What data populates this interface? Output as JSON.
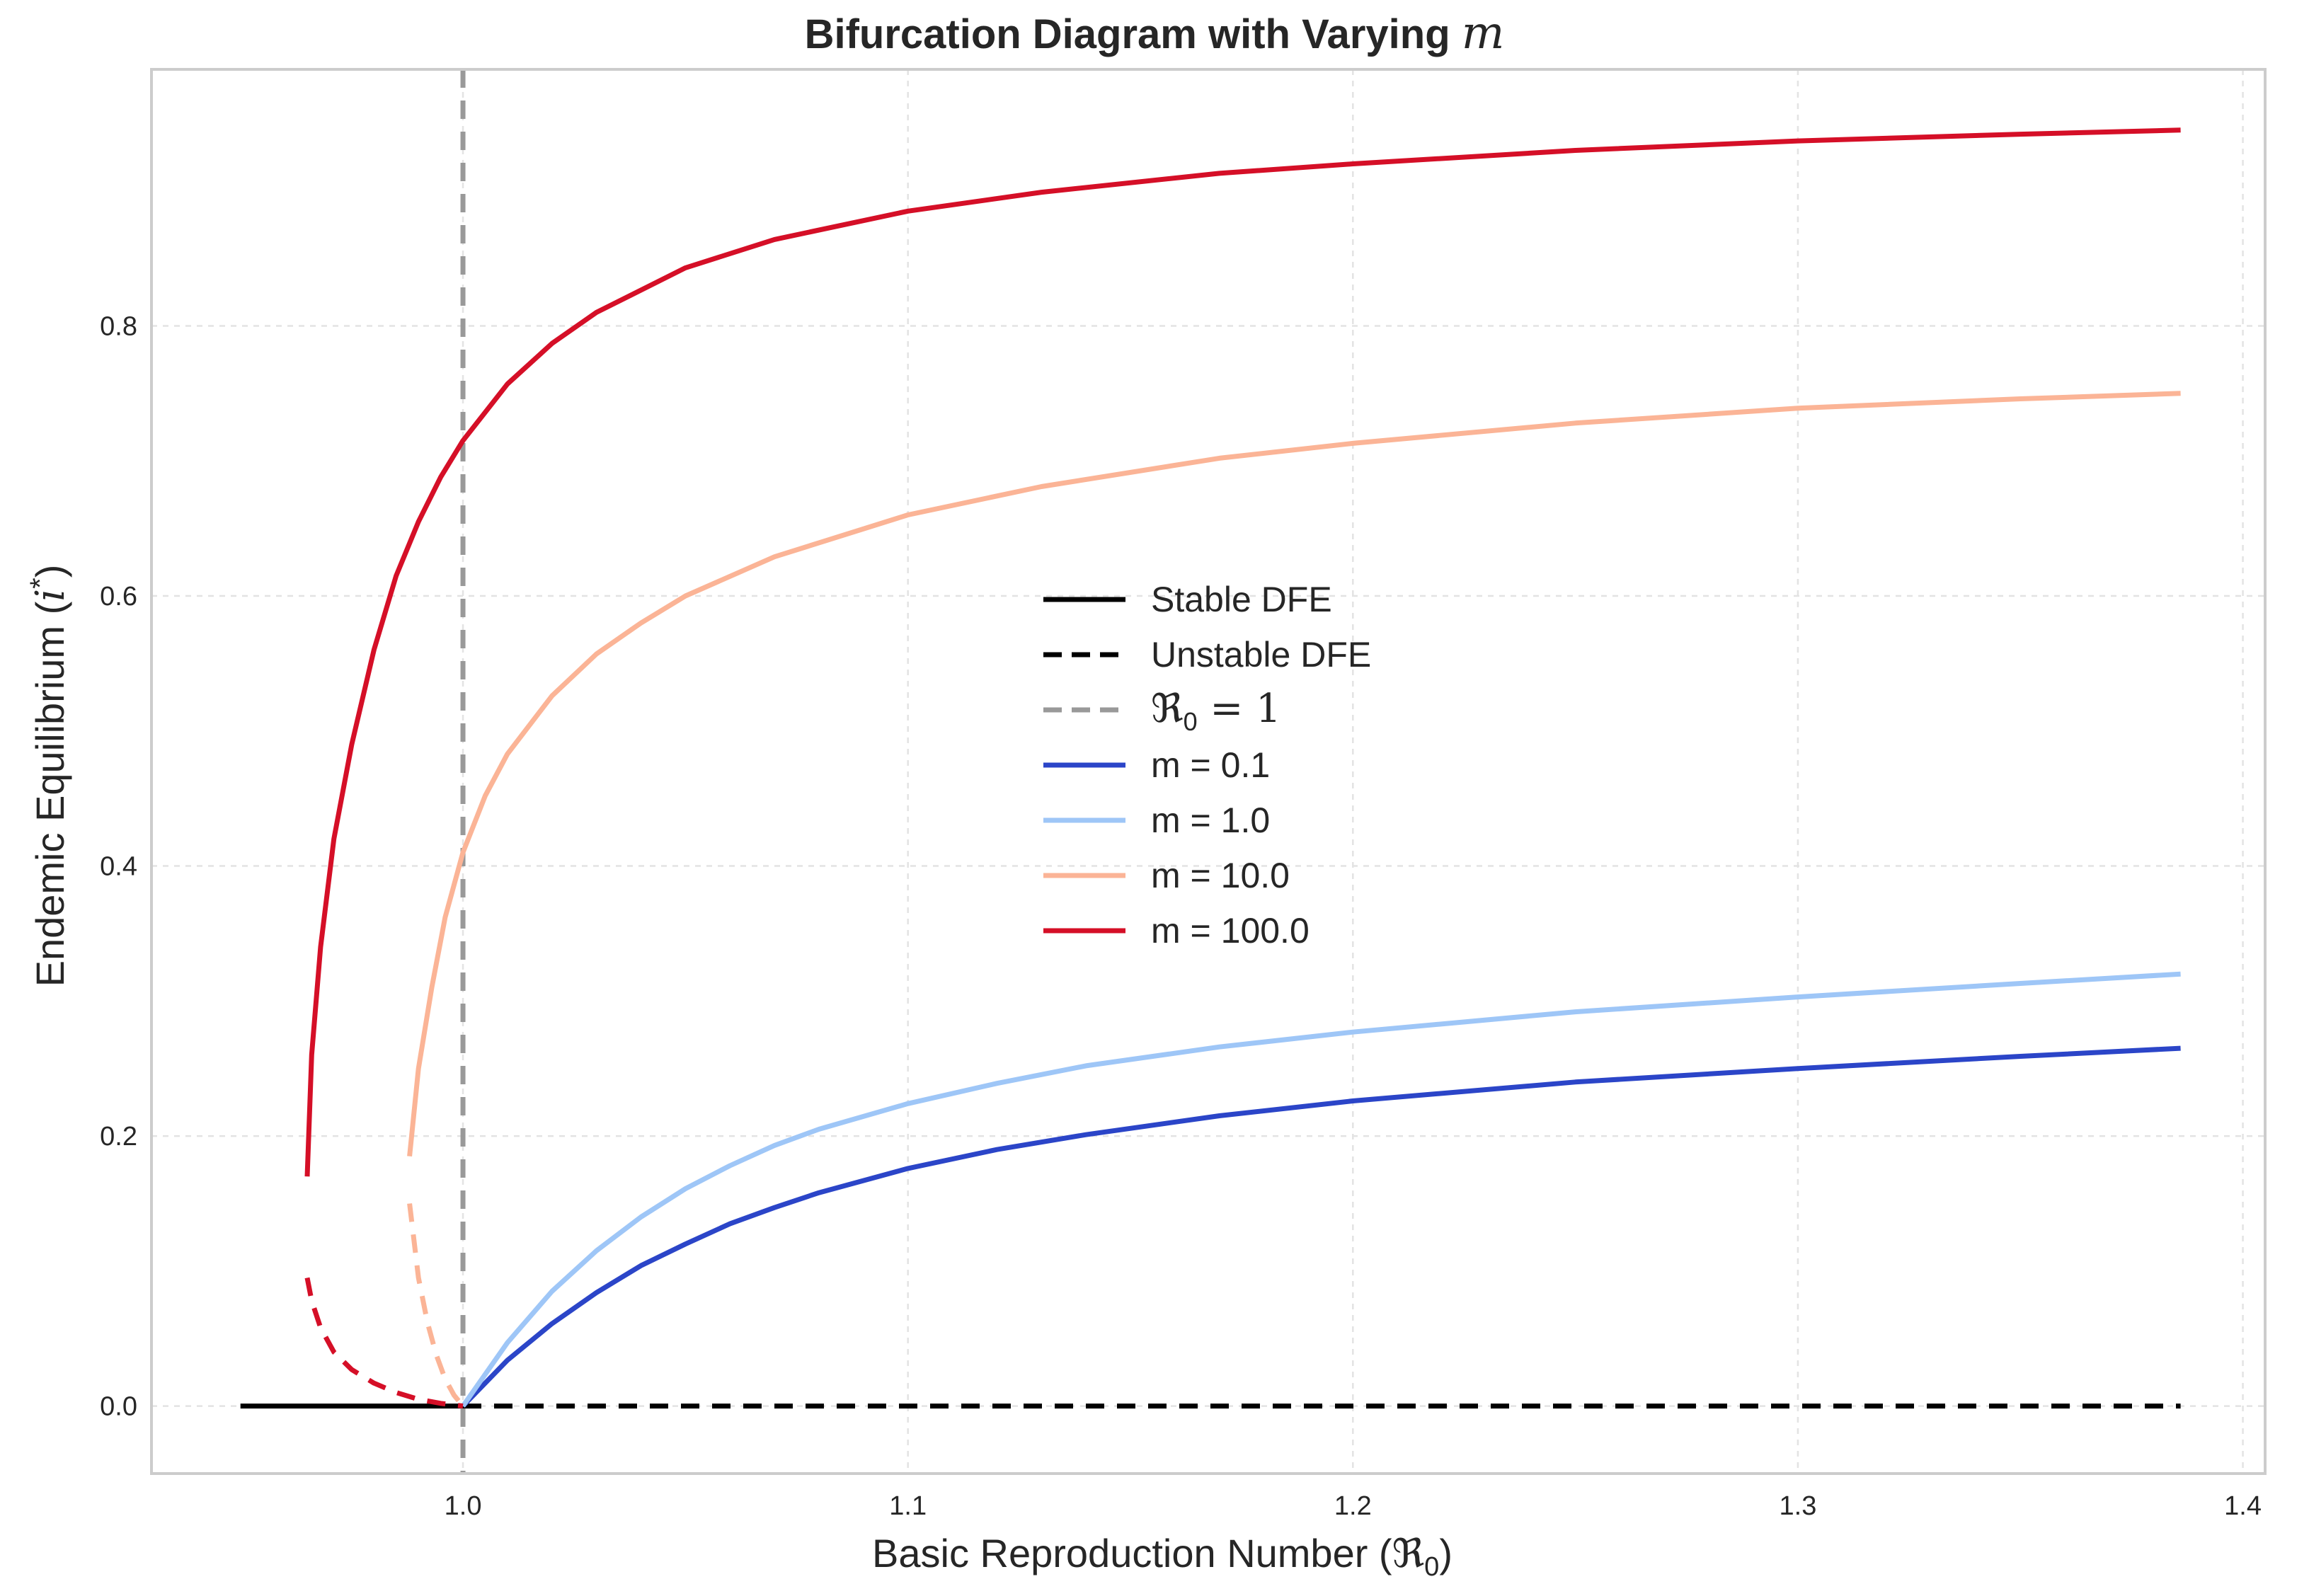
{
  "chart_data": {
    "type": "line",
    "title": "Bifurcation Diagram with Varying",
    "title_variable": "m",
    "xlabel": "Basic Reproduction Number (",
    "xlabel_symbol": "ℜ",
    "xlabel_subscript": "0",
    "xlabel_suffix": ")",
    "ylabel": "Endemic Equilibrium (",
    "ylabel_symbol": "i",
    "ylabel_superscript": "*",
    "ylabel_suffix": ")",
    "xlim": [
      0.93,
      1.405
    ],
    "ylim": [
      -0.05,
      0.99
    ],
    "xticks": [
      1.0,
      1.1,
      1.2,
      1.3,
      1.4
    ],
    "xtick_labels": [
      "1.0",
      "1.1",
      "1.2",
      "1.3",
      "1.4"
    ],
    "yticks": [
      0.0,
      0.2,
      0.4,
      0.6,
      0.8
    ],
    "ytick_labels": [
      "0.0",
      "0.2",
      "0.4",
      "0.6",
      "0.8"
    ],
    "grid": true,
    "legend_position": "center",
    "dfe": {
      "stable": {
        "x": [
          0.95,
          1.0
        ],
        "y": [
          0,
          0
        ],
        "color": "#000000"
      },
      "unstable": {
        "x": [
          1.0,
          1.386
        ],
        "y": [
          0,
          0
        ],
        "color": "#000000"
      }
    },
    "threshold": {
      "x": 1.0,
      "color": "#999999"
    },
    "series": [
      {
        "name": "m = 0.1",
        "color": "#2b45c8",
        "stable": {
          "x": [
            1.0,
            1.01,
            1.02,
            1.03,
            1.04,
            1.05,
            1.06,
            1.07,
            1.08,
            1.1,
            1.12,
            1.14,
            1.17,
            1.2,
            1.25,
            1.3,
            1.35,
            1.386
          ],
          "y": [
            0.0,
            0.034,
            0.061,
            0.084,
            0.104,
            0.12,
            0.135,
            0.147,
            0.158,
            0.176,
            0.19,
            0.201,
            0.215,
            0.226,
            0.24,
            0.25,
            0.259,
            0.265
          ]
        }
      },
      {
        "name": "m = 1.0",
        "color": "#9ec6f7",
        "stable": {
          "x": [
            1.0,
            1.01,
            1.02,
            1.03,
            1.04,
            1.05,
            1.06,
            1.07,
            1.08,
            1.1,
            1.12,
            1.14,
            1.17,
            1.2,
            1.25,
            1.3,
            1.35,
            1.386
          ],
          "y": [
            0.0,
            0.047,
            0.085,
            0.115,
            0.14,
            0.161,
            0.178,
            0.193,
            0.205,
            0.224,
            0.239,
            0.252,
            0.266,
            0.277,
            0.292,
            0.303,
            0.313,
            0.32
          ]
        }
      },
      {
        "name": "m = 10.0",
        "color": "#fbb496",
        "unstable": {
          "x": [
            0.988,
            0.99,
            0.992,
            0.994,
            0.996,
            0.998,
            1.0
          ],
          "y": [
            0.15,
            0.095,
            0.062,
            0.038,
            0.02,
            0.008,
            0.0
          ]
        },
        "stable": {
          "x": [
            0.988,
            0.99,
            0.993,
            0.996,
            1.0,
            1.005,
            1.01,
            1.02,
            1.03,
            1.04,
            1.05,
            1.07,
            1.1,
            1.13,
            1.17,
            1.2,
            1.25,
            1.3,
            1.35,
            1.386
          ],
          "y": [
            0.185,
            0.25,
            0.31,
            0.362,
            0.41,
            0.452,
            0.483,
            0.526,
            0.557,
            0.58,
            0.6,
            0.629,
            0.66,
            0.681,
            0.702,
            0.713,
            0.728,
            0.739,
            0.746,
            0.75
          ]
        }
      },
      {
        "name": "m = 100.0",
        "color": "#d50f27",
        "unstable": {
          "x": [
            0.965,
            0.966,
            0.968,
            0.971,
            0.975,
            0.98,
            0.985,
            0.99,
            0.995,
            1.0
          ],
          "y": [
            0.095,
            0.078,
            0.058,
            0.04,
            0.027,
            0.017,
            0.01,
            0.005,
            0.002,
            0.0
          ]
        },
        "stable": {
          "x": [
            0.965,
            0.966,
            0.968,
            0.971,
            0.975,
            0.98,
            0.985,
            0.99,
            0.995,
            1.0,
            1.01,
            1.02,
            1.03,
            1.05,
            1.07,
            1.1,
            1.13,
            1.17,
            1.2,
            1.25,
            1.3,
            1.35,
            1.386
          ],
          "y": [
            0.17,
            0.26,
            0.34,
            0.42,
            0.49,
            0.56,
            0.615,
            0.655,
            0.688,
            0.715,
            0.757,
            0.787,
            0.81,
            0.843,
            0.864,
            0.885,
            0.899,
            0.913,
            0.92,
            0.93,
            0.937,
            0.942,
            0.945
          ]
        }
      }
    ],
    "legend": [
      {
        "label": "Stable DFE",
        "color": "#000000",
        "dash": "solid"
      },
      {
        "label": "Unstable DFE",
        "color": "#000000",
        "dash": "dashed"
      },
      {
        "label_symbol": "ℜ",
        "label_subscript": "0",
        "label_suffix": " = 1",
        "color": "#999999",
        "dash": "dashed"
      },
      {
        "label": "m = 0.1",
        "color": "#2b45c8",
        "dash": "solid"
      },
      {
        "label": "m = 1.0",
        "color": "#9ec6f7",
        "dash": "solid"
      },
      {
        "label": "m = 10.0",
        "color": "#fbb496",
        "dash": "solid"
      },
      {
        "label": "m = 100.0",
        "color": "#d50f27",
        "dash": "solid"
      }
    ]
  }
}
